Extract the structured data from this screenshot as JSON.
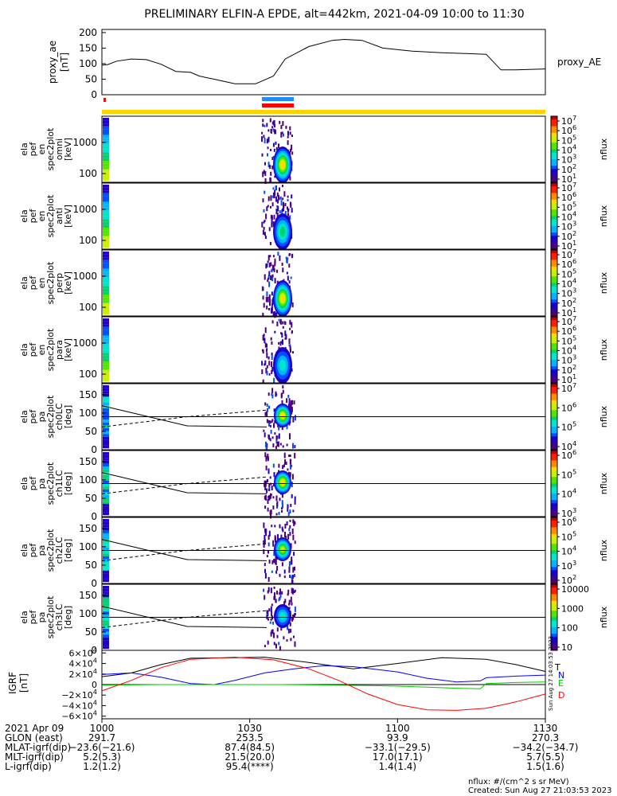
{
  "title": "PRELIMINARY ELFIN-A EPDE, alt=442km, 2021-04-09 10:00 to 11:30",
  "colors": {
    "rainbow": [
      "#4b0082",
      "#1e00c8",
      "#0050ff",
      "#00b4ff",
      "#00e6c8",
      "#00d26e",
      "#50e600",
      "#c8f000",
      "#ffdc00",
      "#ff8c00",
      "#ff1e00",
      "#c80000"
    ],
    "bar_yellow": "#ffd200",
    "bar_blue": "#1e8cff",
    "bar_red": "#ff0000",
    "igrf_T": "#000000",
    "igrf_N": "#0000ff",
    "igrf_E": "#00c800",
    "igrf_D": "#ff0000"
  },
  "chart_data": [
    {
      "type": "line",
      "panel": "proxy_ae",
      "ylabel_lines": [
        "proxy_ae",
        "[nT]"
      ],
      "right_label": "proxy_AE",
      "ylim": [
        0,
        210
      ],
      "yticks": [
        "200",
        "150",
        "100",
        "50",
        "0"
      ],
      "ytick_values": [
        200,
        150,
        100,
        50,
        0
      ],
      "x": [
        10.0,
        10.02,
        10.05,
        10.1,
        10.15,
        10.2,
        10.25,
        10.3,
        10.33,
        10.38,
        10.45,
        10.52,
        10.58,
        10.62,
        10.7,
        10.78,
        10.82,
        10.88,
        10.95,
        11.05,
        11.15,
        11.25,
        11.3,
        11.35,
        11.4,
        11.5
      ],
      "y": [
        95,
        97,
        108,
        115,
        113,
        98,
        75,
        72,
        60,
        50,
        35,
        35,
        60,
        115,
        155,
        175,
        178,
        175,
        150,
        140,
        135,
        132,
        130,
        80,
        80,
        83
      ]
    },
    {
      "type": "heatmap",
      "panel": "coverage_bars",
      "bars": [
        "yellow full span",
        "blue 10:34-10:37",
        "red 10:34-10:37",
        "red tick 10:00"
      ]
    },
    {
      "type": "heatmap",
      "panel": "omni",
      "ylabel_lines": [
        "ela",
        "pef",
        "en",
        "spec2plot",
        "omni",
        "[keV]"
      ],
      "yticks": [
        "1000",
        "100"
      ],
      "colorbar_label": "nflux",
      "colorbar_ticks": [
        "10^7",
        "10^6",
        "10^5",
        "10^4",
        "10^3",
        "10^2",
        "10^1"
      ]
    },
    {
      "type": "heatmap",
      "panel": "anti",
      "ylabel_lines": [
        "ela",
        "pef",
        "en",
        "spec2plot",
        "anti",
        "[keV]"
      ],
      "yticks": [
        "1000",
        "100"
      ],
      "colorbar_label": "nflux",
      "colorbar_ticks": [
        "10^7",
        "10^6",
        "10^5",
        "10^4",
        "10^3",
        "10^2",
        "10^1"
      ]
    },
    {
      "type": "heatmap",
      "panel": "perp",
      "ylabel_lines": [
        "ela",
        "pef",
        "en",
        "spec2plot",
        "perp",
        "[keV]"
      ],
      "yticks": [
        "1000",
        "100"
      ],
      "colorbar_label": "nflux",
      "colorbar_ticks": [
        "10^7",
        "10^6",
        "10^5",
        "10^4",
        "10^3",
        "10^2",
        "10^1"
      ]
    },
    {
      "type": "heatmap",
      "panel": "para",
      "ylabel_lines": [
        "ela",
        "pef",
        "en",
        "spec2plot",
        "para",
        "[keV]"
      ],
      "yticks": [
        "1000",
        "100"
      ],
      "colorbar_label": "nflux",
      "colorbar_ticks": [
        "10^7",
        "10^6",
        "10^5",
        "10^4",
        "10^3",
        "10^2",
        "10^1"
      ]
    },
    {
      "type": "heatmap",
      "panel": "ch0LC",
      "ylabel_lines": [
        "ela",
        "pef",
        "pa",
        "spec2plot",
        "ch0LC",
        "[deg]"
      ],
      "ylim": [
        0,
        180
      ],
      "yticks": [
        "150",
        "100",
        "50",
        "0"
      ],
      "colorbar_label": "nflux",
      "colorbar_ticks": [
        "10^7",
        "10^6",
        "10^5",
        "10^4"
      ]
    },
    {
      "type": "heatmap",
      "panel": "ch1LC",
      "ylabel_lines": [
        "ela",
        "pef",
        "pa",
        "spec2plot",
        "ch1LC",
        "[deg]"
      ],
      "ylim": [
        0,
        180
      ],
      "yticks": [
        "150",
        "100",
        "50",
        "0"
      ],
      "colorbar_label": "nflux",
      "colorbar_ticks": [
        "10^6",
        "10^5",
        "10^4",
        "10^3"
      ]
    },
    {
      "type": "heatmap",
      "panel": "ch2LC",
      "ylabel_lines": [
        "ela",
        "pef",
        "pa",
        "spec2plot",
        "ch2LC",
        "[deg]"
      ],
      "ylim": [
        0,
        180
      ],
      "yticks": [
        "150",
        "100",
        "50",
        "0"
      ],
      "colorbar_label": "nflux",
      "colorbar_ticks": [
        "10^6",
        "10^5",
        "10^4",
        "10^3",
        "10^2"
      ]
    },
    {
      "type": "heatmap",
      "panel": "ch3LC",
      "ylabel_lines": [
        "ela",
        "pef",
        "pa",
        "spec2plot",
        "ch3LC",
        "[deg]"
      ],
      "ylim": [
        0,
        180
      ],
      "yticks": [
        "150",
        "100",
        "50",
        "0"
      ],
      "colorbar_label": "nflux",
      "colorbar_ticks": [
        "10000",
        "1000",
        "100",
        "10"
      ]
    },
    {
      "type": "line",
      "panel": "IGRF",
      "ylabel_lines": [
        "IGRF",
        "[nT]"
      ],
      "ylim": [
        -65000,
        65000
      ],
      "yticks": [
        "6×10^4",
        "4×10^4",
        "2×10^4",
        "0",
        "−2×10^4",
        "−4×10^4",
        "−6×10^4"
      ],
      "ytick_values": [
        60000,
        40000,
        20000,
        0,
        -20000,
        -40000,
        -60000
      ],
      "legend": [
        "T",
        "N",
        "E",
        "D"
      ],
      "series": [
        {
          "name": "T",
          "x": [
            10.0,
            10.1,
            10.2,
            10.3,
            10.45,
            10.55,
            10.7,
            10.85,
            11.0,
            11.15,
            11.3,
            11.4,
            11.5
          ],
          "y": [
            15000,
            22000,
            38000,
            50000,
            51000,
            52000,
            42000,
            30000,
            40000,
            51000,
            48000,
            38000,
            25000
          ]
        },
        {
          "name": "N",
          "x": [
            10.0,
            10.1,
            10.2,
            10.3,
            10.38,
            10.45,
            10.55,
            10.65,
            10.75,
            10.85,
            11.0,
            11.1,
            11.2,
            11.28,
            11.3,
            11.4,
            11.5
          ],
          "y": [
            19000,
            22000,
            14000,
            2000,
            0,
            8000,
            22000,
            30000,
            36000,
            34000,
            24000,
            12000,
            5000,
            7000,
            13000,
            16000,
            18000
          ]
        },
        {
          "name": "E",
          "x": [
            10.0,
            10.2,
            10.4,
            10.6,
            10.8,
            10.9,
            11.0,
            11.1,
            11.2,
            11.28,
            11.3,
            11.4,
            11.5
          ],
          "y": [
            -1000,
            0,
            0,
            0,
            -1000,
            -2000,
            -3000,
            -5000,
            -7000,
            -8000,
            2000,
            4000,
            5000
          ]
        },
        {
          "name": "D",
          "x": [
            10.0,
            10.1,
            10.2,
            10.3,
            10.45,
            10.58,
            10.7,
            10.8,
            10.9,
            11.0,
            11.1,
            11.2,
            11.3,
            11.4,
            11.5
          ],
          "y": [
            -12000,
            8000,
            32000,
            48000,
            52000,
            47000,
            30000,
            8000,
            -18000,
            -38000,
            -48000,
            -49000,
            -45000,
            -33000,
            -18000
          ]
        }
      ],
      "side_text": "Sun Aug 27 14:03:53 2023"
    }
  ],
  "xaxis": {
    "ticks": [
      "1000",
      "1030",
      "1100",
      "1130"
    ],
    "tick_hours": [
      10.0,
      10.5,
      11.0,
      11.5
    ],
    "rows": [
      {
        "label": "2021 Apr 09",
        "vals": [
          "",
          "",
          "",
          ""
        ]
      },
      {
        "label": "GLON (east)",
        "vals": [
          "291.7",
          "253.5",
          "93.9",
          "270.3"
        ]
      },
      {
        "label": "MLAT-igrf(dip)",
        "vals": [
          "−23.6(−21.6)",
          "87.4(84.5)",
          "−33.1(−29.5)",
          "−34.2(−34.7)"
        ]
      },
      {
        "label": "MLT-igrf(dip)",
        "vals": [
          "5.2(5.3)",
          "21.5(20.0)",
          "17.0(17.1)",
          "5.7(5.5)"
        ]
      },
      {
        "label": "L-igrf(dip)",
        "vals": [
          "1.2(1.2)",
          "95.4(****)",
          "1.4(1.4)",
          "1.5(1.6)"
        ]
      }
    ]
  },
  "footer": {
    "units": "nflux: #/(cm^2 s sr MeV)",
    "created": "Created: Sun Aug 27 21:03:53 2023"
  }
}
